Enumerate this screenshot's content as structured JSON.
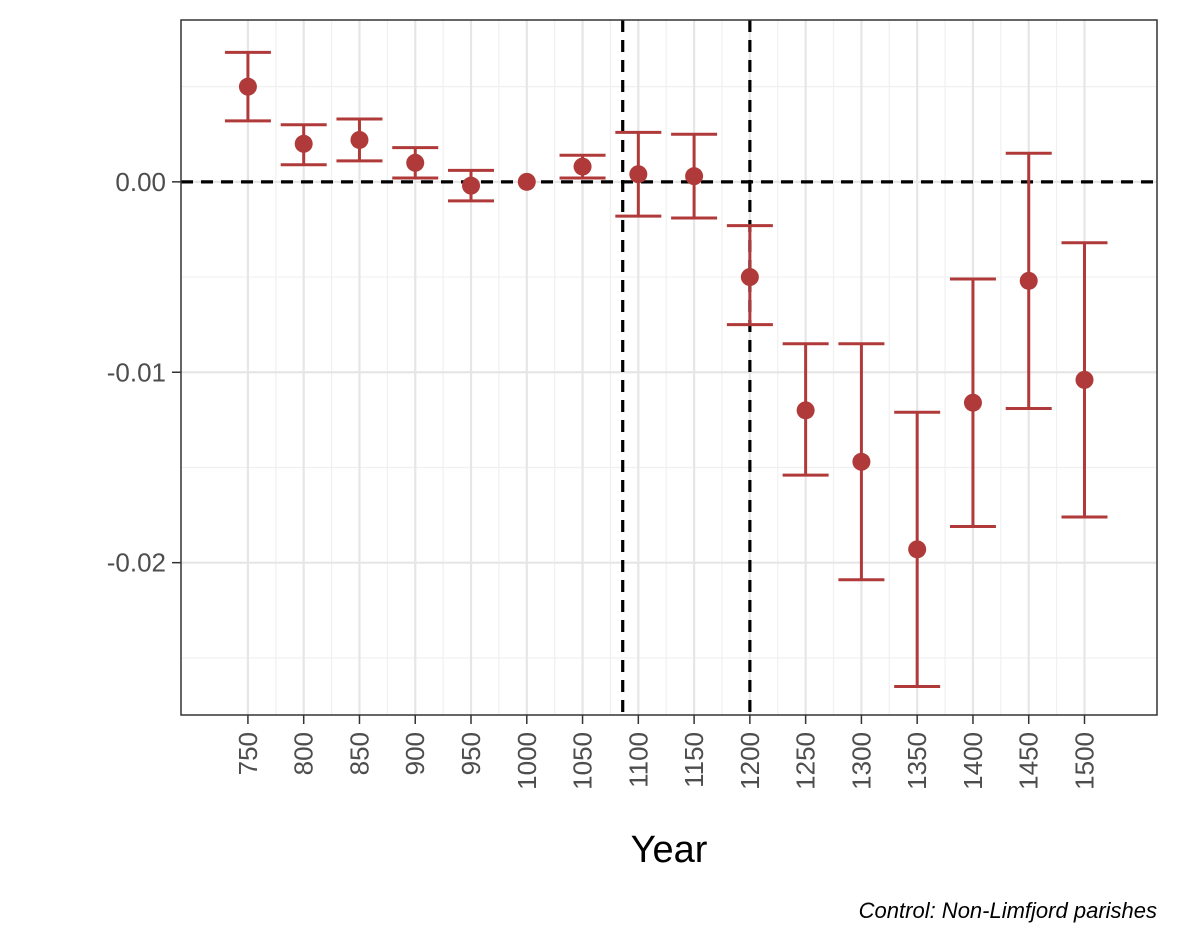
{
  "chart_data": {
    "type": "scatter",
    "xlabel": "Year",
    "ylabel": "",
    "caption": "Control: Non-Limfjord parishes",
    "x": [
      750,
      800,
      850,
      900,
      950,
      1000,
      1050,
      1100,
      1150,
      1200,
      1250,
      1300,
      1350,
      1400,
      1450,
      1500
    ],
    "x_tick_labels": [
      "750",
      "800",
      "850",
      "900",
      "950",
      "1000",
      "1050",
      "1100",
      "1150",
      "1200",
      "1250",
      "1300",
      "1350",
      "1400",
      "1450",
      "1500"
    ],
    "y_tick_values": [
      0.0,
      -0.01,
      -0.02
    ],
    "y_tick_labels": [
      "0.00",
      "-0.01",
      "-0.02"
    ],
    "ylim": [
      -0.028,
      0.0085
    ],
    "xlim": [
      690,
      1565
    ],
    "grid": true,
    "series": [
      {
        "estimate": [
          0.005,
          0.002,
          0.0022,
          0.001,
          -0.0002,
          0.0,
          0.0008,
          0.0004,
          0.0003,
          -0.005,
          -0.012,
          -0.0147,
          -0.0193,
          -0.0116,
          -0.0052,
          -0.0104
        ],
        "ci_low": [
          0.0032,
          0.0009,
          0.0011,
          0.0002,
          -0.001,
          0.0,
          0.0002,
          -0.0018,
          -0.0019,
          -0.0075,
          -0.0154,
          -0.0209,
          -0.0265,
          -0.0181,
          -0.0119,
          -0.0176
        ],
        "ci_high": [
          0.0068,
          0.003,
          0.0033,
          0.0018,
          0.0006,
          0.0,
          0.0014,
          0.0026,
          0.0025,
          -0.0023,
          -0.0085,
          -0.0085,
          -0.0121,
          -0.0051,
          0.0015,
          -0.0032
        ],
        "color": "#b03a3a"
      }
    ],
    "reference_lines": {
      "horizontal_y": 0.0,
      "vertical_x": [
        1086,
        1200
      ],
      "style": "dashed",
      "color": "#000000"
    }
  }
}
